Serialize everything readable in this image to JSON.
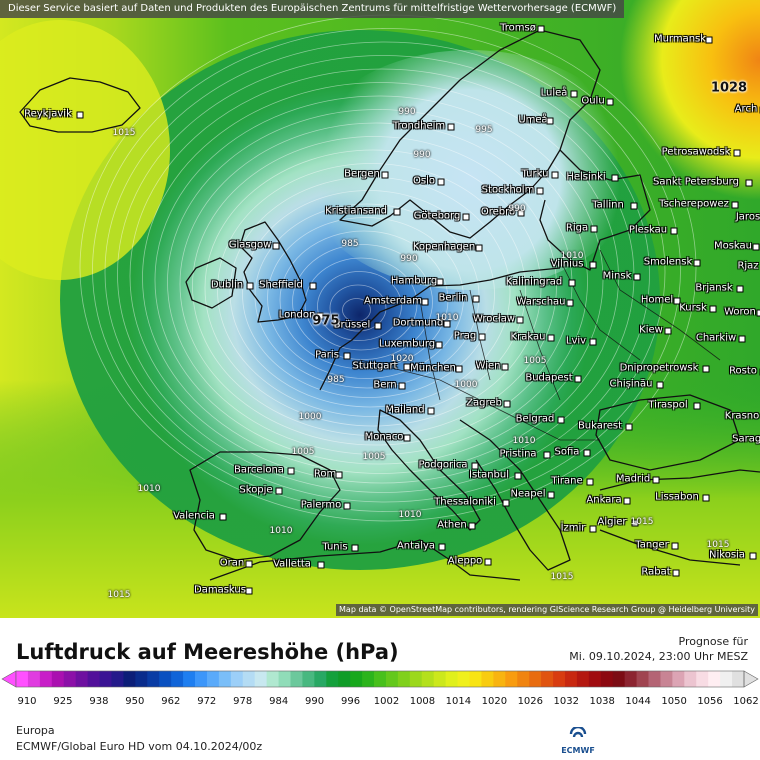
{
  "header": {
    "notice": "Dieser Service basiert auf Daten und Produkten des Europäischen Zentrums für mittelfristige Wettervorhersage (ECMWF)"
  },
  "map": {
    "attribution": "Map data © OpenStreetMap contributors, rendering GIScience Research Group @ Heidelberg University",
    "pressure_centers": [
      {
        "label": "1028"
      },
      {
        "label": "975"
      }
    ],
    "isobar_labels": [
      "1015",
      "990",
      "995",
      "990",
      "990",
      "985",
      "990",
      "985",
      "1000",
      "1005",
      "1005",
      "1010",
      "1010",
      "1010",
      "1015",
      "1000",
      "1005",
      "1010",
      "1015",
      "1015",
      "1015",
      "1010",
      "1020",
      "1010"
    ],
    "cities": [
      "Tromsø",
      "Murmansk",
      "Reykjavik",
      "Luleå",
      "Oulu",
      "Arch",
      "Trondheim",
      "Umeå",
      "Petrosawodsk",
      "Bergen",
      "Oslo",
      "Turku",
      "Helsinki",
      "Sankt Petersburg",
      "Stockholm",
      "Tallinn",
      "Tscherepowez",
      "Jaros",
      "Kristiansand",
      "Göteborg",
      "Orebro",
      "Riga",
      "Pleskau",
      "Glasgow",
      "Kopenhagen",
      "Moskau",
      "Vilnius",
      "Minsk",
      "Smolensk",
      "Rjaz",
      "Dublin",
      "Sheffield",
      "Hamburg",
      "Kaliningrad",
      "Brjansk",
      "Berlin",
      "Warschau",
      "Homel",
      "Amsterdam",
      "Kursk",
      "Woron",
      "London",
      "Brüssel",
      "Dortmund",
      "Wrocław",
      "Kiew",
      "Prag",
      "Krakau",
      "Lviv",
      "Charkiw",
      "Luxemburg",
      "Paris",
      "Stuttgart",
      "Wien",
      "Dnipropetrowsk",
      "München",
      "Bern",
      "Budapest",
      "Chișinău",
      "Rosto",
      "Mailand",
      "Zagreb",
      "Tiraspol",
      "Krasno",
      "Belgrad",
      "Bukarest",
      "Monaco",
      "Pristina",
      "Sofia",
      "Saragossa",
      "Barcelona",
      "Rom",
      "Podgorica",
      "Istanbul",
      "Madrid",
      "Skopje",
      "Tirane",
      "Neapel",
      "Thessaloniki",
      "Ankara",
      "Lissabon",
      "Valencia",
      "Palermo",
      "Athen",
      "İzmir",
      "Algier",
      "Tunis",
      "Antalya",
      "Tanger",
      "Oran",
      "Valletta",
      "Aleppo",
      "Nikosia",
      "Rabat",
      "Damaskus"
    ]
  },
  "legend": {
    "title": "Luftdruck auf Meereshöhe (hPa)",
    "forecast_label": "Prognose für",
    "forecast_time": "Mi. 09.10.2024, 23:00 Uhr MESZ",
    "tick_labels": [
      "910",
      "925",
      "938",
      "950",
      "962",
      "972",
      "978",
      "984",
      "990",
      "996",
      "1002",
      "1008",
      "1014",
      "1020",
      "1026",
      "1032",
      "1038",
      "1044",
      "1050",
      "1056",
      "1062"
    ],
    "colors": [
      "#ff50ff",
      "#e03ce0",
      "#c81ec8",
      "#aa10b0",
      "#8c10a8",
      "#6e10a0",
      "#52109a",
      "#3a1494",
      "#241a8a",
      "#0c1e78",
      "#0a2c8c",
      "#0a3ca4",
      "#0a50c0",
      "#1064d8",
      "#1e7ef0",
      "#3c96fa",
      "#5aaafa",
      "#7abef8",
      "#9ccff8",
      "#b4dcf4",
      "#c8e8f0",
      "#b0e8d0",
      "#90dcb8",
      "#6cc89c",
      "#48b880",
      "#28a864",
      "#14a03c",
      "#109c28",
      "#18a81c",
      "#2cb41c",
      "#48c01c",
      "#64c81c",
      "#80d01c",
      "#9cd81c",
      "#b4e01c",
      "#cce81c",
      "#e0f01c",
      "#f0f01c",
      "#f8e414",
      "#f8cc10",
      "#f8b410",
      "#f89c10",
      "#f08410",
      "#e86c10",
      "#e05410",
      "#d83c10",
      "#c82810",
      "#b41810",
      "#a00c10",
      "#8c0810",
      "#7c0c14",
      "#8c2430",
      "#a04450",
      "#b46474",
      "#c88494",
      "#dca4b4",
      "#ecc4d0",
      "#f8dce4",
      "#ffeef2",
      "#f0f0f0",
      "#e0e0e0"
    ],
    "region": "Europa",
    "model": "ECMWF/Global Euro HD vom 04.10.2024/00z",
    "logo_text": "ECMWF"
  }
}
